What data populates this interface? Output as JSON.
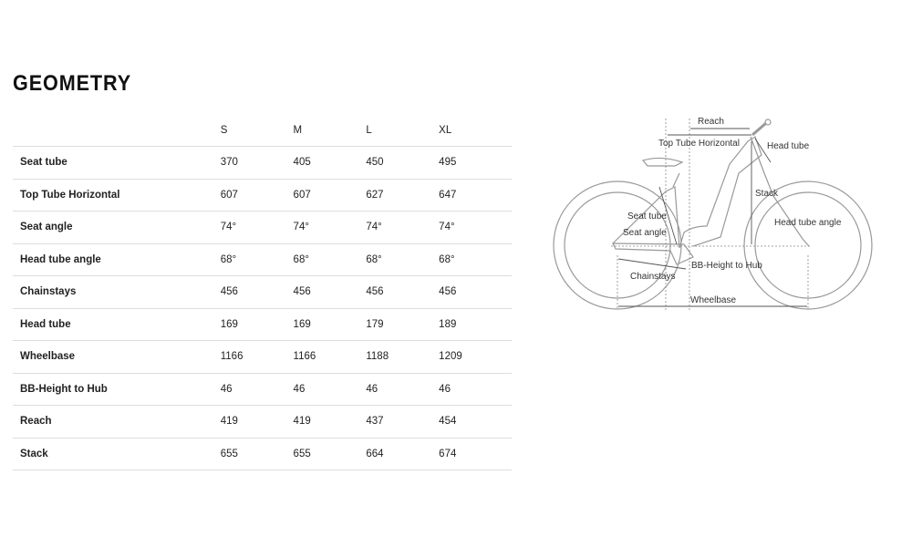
{
  "title": "GEOMETRY",
  "table": {
    "columns": [
      "S",
      "M",
      "L",
      "XL"
    ],
    "rows": [
      {
        "label": "Seat tube",
        "values": [
          "370",
          "405",
          "450",
          "495"
        ]
      },
      {
        "label": "Top Tube Horizontal",
        "values": [
          "607",
          "607",
          "627",
          "647"
        ]
      },
      {
        "label": "Seat angle",
        "values": [
          "74°",
          "74°",
          "74°",
          "74°"
        ]
      },
      {
        "label": "Head tube angle",
        "values": [
          "68°",
          "68°",
          "68°",
          "68°"
        ]
      },
      {
        "label": "Chainstays",
        "values": [
          "456",
          "456",
          "456",
          "456"
        ]
      },
      {
        "label": "Head tube",
        "values": [
          "169",
          "169",
          "179",
          "189"
        ]
      },
      {
        "label": "Wheelbase",
        "values": [
          "1166",
          "1166",
          "1188",
          "1209"
        ]
      },
      {
        "label": "BB-Height to Hub",
        "values": [
          "46",
          "46",
          "46",
          "46"
        ]
      },
      {
        "label": "Reach",
        "values": [
          "419",
          "419",
          "437",
          "454"
        ]
      },
      {
        "label": "Stack",
        "values": [
          "655",
          "655",
          "664",
          "674"
        ]
      }
    ]
  },
  "diagram": {
    "reach": "Reach",
    "top_tube": "Top Tube Horizontal",
    "head_tube": "Head tube",
    "stack": "Stack",
    "seat_tube": "Seat tube",
    "seat_angle": "Seat angle",
    "head_tube_angle": "Head tube angle",
    "bb_height": "BB-Height to Hub",
    "chainstays": "Chainstays",
    "wheelbase": "Wheelbase"
  }
}
